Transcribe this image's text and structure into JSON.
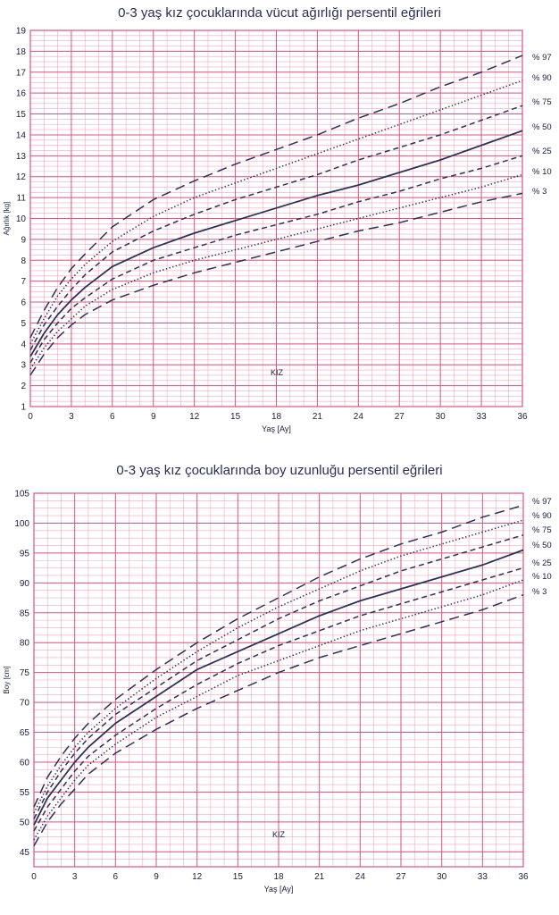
{
  "chart_data": [
    {
      "type": "line",
      "title": "0-3 yaş kız çocuklarında vücut ağırlığı persentil eğrileri",
      "xlabel": "Yaş [Ay]",
      "ylabel": "Ağırlık [kg]",
      "xlim": [
        0,
        36
      ],
      "ylim": [
        1,
        19
      ],
      "x_ticks": [
        "0",
        "3",
        "6",
        "9",
        "12",
        "15",
        "18",
        "21",
        "24",
        "27",
        "30",
        "33",
        "36"
      ],
      "y_ticks": [
        "1",
        "2",
        "3",
        "4",
        "5",
        "6",
        "7",
        "8",
        "9",
        "10",
        "11",
        "12",
        "13",
        "14",
        "15",
        "16",
        "17",
        "18",
        "19"
      ],
      "annotation": "KIZ",
      "grid": true,
      "legend_position": "right",
      "x": [
        0,
        1,
        2,
        3,
        4,
        6,
        9,
        12,
        15,
        18,
        21,
        24,
        27,
        30,
        33,
        36
      ],
      "series": [
        {
          "name": "% 97",
          "style": "long-dash",
          "values": [
            4.3,
            5.6,
            6.7,
            7.6,
            8.3,
            9.6,
            10.9,
            11.8,
            12.6,
            13.3,
            14.0,
            14.8,
            15.5,
            16.3,
            17.0,
            17.8
          ]
        },
        {
          "name": "% 90",
          "style": "dotted",
          "values": [
            4.0,
            5.2,
            6.3,
            7.1,
            7.8,
            8.9,
            10.1,
            11.0,
            11.7,
            12.4,
            13.1,
            13.8,
            14.5,
            15.2,
            15.9,
            16.6
          ]
        },
        {
          "name": "% 75",
          "style": "short-dash",
          "values": [
            3.7,
            4.9,
            5.8,
            6.6,
            7.3,
            8.4,
            9.4,
            10.2,
            10.9,
            11.5,
            12.1,
            12.8,
            13.4,
            14.0,
            14.7,
            15.4
          ]
        },
        {
          "name": "% 50",
          "style": "solid",
          "values": [
            3.4,
            4.5,
            5.4,
            6.1,
            6.7,
            7.7,
            8.6,
            9.3,
            9.9,
            10.5,
            11.1,
            11.6,
            12.2,
            12.8,
            13.5,
            14.2
          ]
        },
        {
          "name": "% 25",
          "style": "short-dash",
          "values": [
            3.1,
            4.2,
            5.0,
            5.7,
            6.2,
            7.1,
            8.0,
            8.6,
            9.2,
            9.7,
            10.2,
            10.8,
            11.3,
            11.9,
            12.4,
            13.0
          ]
        },
        {
          "name": "% 10",
          "style": "dotted",
          "values": [
            2.8,
            3.8,
            4.6,
            5.2,
            5.8,
            6.6,
            7.4,
            8.0,
            8.5,
            9.0,
            9.5,
            10.0,
            10.5,
            11.0,
            11.5,
            12.1
          ]
        },
        {
          "name": "% 3",
          "style": "long-dash",
          "values": [
            2.5,
            3.5,
            4.3,
            4.9,
            5.4,
            6.1,
            6.8,
            7.4,
            7.9,
            8.4,
            8.9,
            9.4,
            9.8,
            10.3,
            10.8,
            11.2
          ]
        }
      ]
    },
    {
      "type": "line",
      "title": "0-3 yaş kız çocuklarında boy uzunluğu persentil eğrileri",
      "xlabel": "Yaş [Ay]",
      "ylabel": "Boy [cm]",
      "xlim": [
        0,
        36
      ],
      "ylim": [
        42.5,
        105
      ],
      "x_ticks": [
        "0",
        "3",
        "6",
        "9",
        "12",
        "15",
        "18",
        "21",
        "24",
        "27",
        "30",
        "33",
        "36"
      ],
      "y_ticks": [
        "45",
        "50",
        "55",
        "60",
        "65",
        "70",
        "75",
        "80",
        "85",
        "90",
        "95",
        "100",
        "105"
      ],
      "annotation": "KIZ",
      "grid": true,
      "legend_position": "right",
      "x": [
        0,
        1,
        2,
        3,
        4,
        6,
        9,
        12,
        15,
        18,
        21,
        24,
        27,
        30,
        33,
        36
      ],
      "series": [
        {
          "name": "% 97",
          "style": "long-dash",
          "values": [
            52.5,
            57.5,
            61.0,
            64.0,
            66.5,
            70.5,
            75.5,
            80.0,
            84.0,
            87.5,
            91.0,
            94.0,
            96.5,
            98.5,
            101.0,
            103.0
          ]
        },
        {
          "name": "% 90",
          "style": "dotted",
          "values": [
            51.5,
            56.0,
            59.5,
            62.5,
            65.0,
            69.0,
            74.0,
            78.5,
            82.5,
            86.0,
            89.0,
            92.0,
            94.5,
            96.5,
            98.5,
            100.5
          ]
        },
        {
          "name": "% 75",
          "style": "short-dash",
          "values": [
            50.5,
            55.0,
            58.5,
            61.5,
            64.0,
            68.0,
            72.5,
            77.0,
            80.5,
            84.0,
            87.0,
            89.5,
            92.0,
            94.0,
            96.0,
            98.0
          ]
        },
        {
          "name": "% 50",
          "style": "solid",
          "values": [
            49.5,
            54.0,
            57.0,
            60.0,
            62.5,
            66.5,
            71.0,
            75.5,
            78.5,
            81.5,
            84.5,
            87.0,
            89.0,
            91.0,
            93.0,
            95.5
          ]
        },
        {
          "name": "% 25",
          "style": "short-dash",
          "values": [
            48.5,
            52.5,
            55.5,
            58.5,
            61.0,
            64.5,
            69.0,
            73.0,
            76.5,
            79.5,
            82.0,
            84.5,
            86.5,
            88.5,
            90.5,
            92.5
          ]
        },
        {
          "name": "% 10",
          "style": "dotted",
          "values": [
            47.0,
            51.0,
            54.0,
            57.0,
            59.5,
            63.0,
            67.5,
            71.0,
            74.5,
            77.0,
            79.5,
            82.0,
            84.0,
            86.0,
            88.0,
            90.5
          ]
        },
        {
          "name": "% 3",
          "style": "long-dash",
          "values": [
            46.0,
            50.0,
            53.0,
            55.5,
            58.0,
            61.5,
            65.5,
            69.0,
            72.0,
            75.0,
            77.5,
            79.5,
            81.5,
            83.5,
            85.5,
            88.0
          ]
        }
      ]
    }
  ]
}
